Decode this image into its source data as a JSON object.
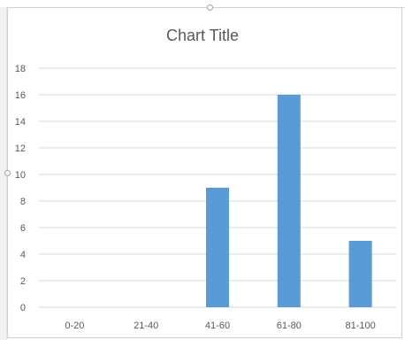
{
  "chart_data": {
    "type": "bar",
    "title": "Chart Title",
    "categories": [
      "0-20",
      "21-40",
      "41-60",
      "61-80",
      "81-100"
    ],
    "values": [
      0,
      0,
      9,
      16,
      5
    ],
    "ylim": [
      0,
      18
    ],
    "yticks": [
      0,
      2,
      4,
      6,
      8,
      10,
      12,
      14,
      16,
      18
    ],
    "xlabel": "",
    "ylabel": "",
    "grid": true,
    "legend": "none",
    "bar_color": "#5b9bd5",
    "grid_color": "#d9d9d9",
    "text_color": "#595959"
  }
}
